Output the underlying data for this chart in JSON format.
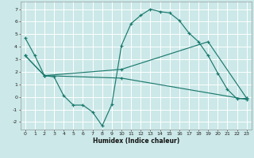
{
  "xlabel": "Humidex (Indice chaleur)",
  "bg_color": "#cce8e8",
  "grid_color": "#ffffff",
  "line_color": "#1a7a6e",
  "line1_x": [
    0,
    1,
    2,
    3,
    4,
    5,
    6,
    7,
    8,
    9,
    10,
    11,
    12,
    13,
    14,
    15,
    16,
    17,
    18,
    19,
    20,
    21,
    22,
    23
  ],
  "line1_y": [
    4.7,
    3.3,
    1.7,
    1.6,
    0.1,
    -0.65,
    -0.65,
    -1.2,
    -2.3,
    -0.6,
    4.1,
    5.85,
    6.5,
    7.0,
    6.8,
    6.7,
    6.1,
    5.1,
    4.4,
    3.3,
    1.9,
    0.6,
    -0.15,
    -0.1
  ],
  "line2_x": [
    0,
    2,
    10,
    19,
    23
  ],
  "line2_y": [
    3.3,
    1.7,
    2.2,
    4.4,
    -0.1
  ],
  "line3_x": [
    0,
    2,
    10,
    23
  ],
  "line3_y": [
    3.3,
    1.7,
    1.5,
    -0.2
  ],
  "ylim": [
    -2.6,
    7.6
  ],
  "xlim": [
    -0.5,
    23.5
  ],
  "yticks": [
    -2,
    -1,
    0,
    1,
    2,
    3,
    4,
    5,
    6,
    7
  ],
  "xticks": [
    0,
    1,
    2,
    3,
    4,
    5,
    6,
    7,
    8,
    9,
    10,
    11,
    12,
    13,
    14,
    15,
    16,
    17,
    18,
    19,
    20,
    21,
    22,
    23
  ],
  "xlabel_fontsize": 5.5,
  "tick_fontsize": 4.5
}
